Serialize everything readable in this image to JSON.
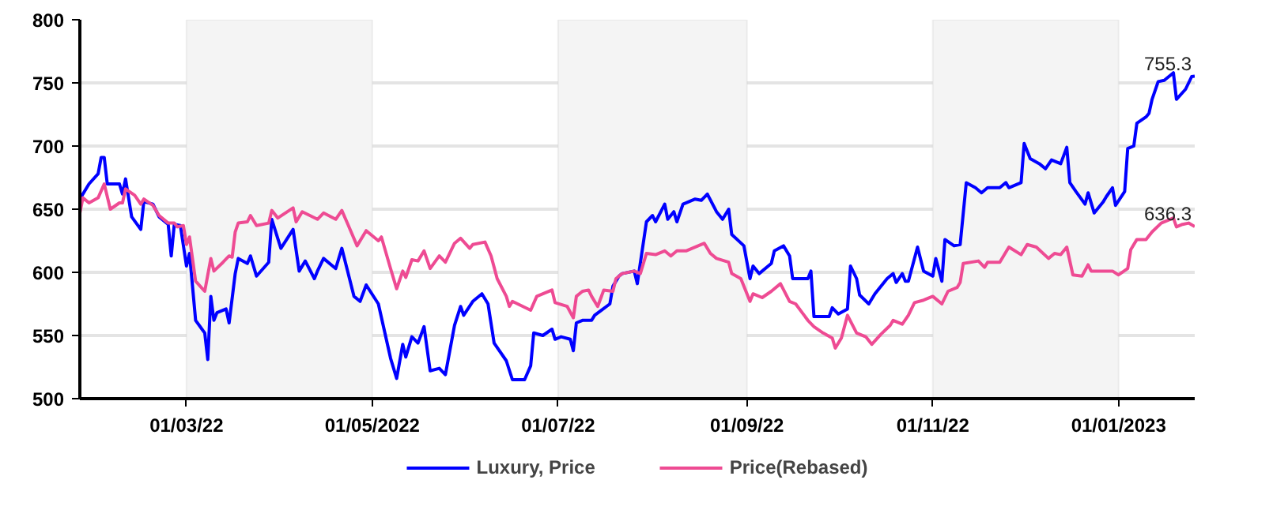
{
  "chart_data": {
    "type": "line",
    "xlim": [
      "2022-01-25",
      "2023-01-26"
    ],
    "xticks": [
      {
        "value": "2022-03-01",
        "label": "01/03/22"
      },
      {
        "value": "2022-05-01",
        "label": "01/05/2022"
      },
      {
        "value": "2022-07-01",
        "label": "01/07/22"
      },
      {
        "value": "2022-09-01",
        "label": "01/09/22"
      },
      {
        "value": "2022-11-01",
        "label": "01/11/22"
      },
      {
        "value": "2023-01-01",
        "label": "01/01/2023"
      }
    ],
    "ylim": [
      500,
      800
    ],
    "yticks": [
      500,
      550,
      600,
      650,
      700,
      750,
      800
    ],
    "grid": "y",
    "legend": "bottom",
    "line_style": "solid",
    "bands": [
      {
        "axis": "x",
        "from": "2022-03-01",
        "to": "2022-05-01",
        "color": "#f4f4f4"
      },
      {
        "axis": "x",
        "from": "2022-07-01",
        "to": "2022-09-01",
        "color": "#f4f4f4"
      },
      {
        "axis": "x",
        "from": "2022-11-01",
        "to": "2023-01-01",
        "color": "#f4f4f4"
      }
    ],
    "annotations": [
      {
        "text": "755.3",
        "x": "2023-01-26",
        "y": 755.3
      },
      {
        "text": "636.3",
        "x": "2023-01-26",
        "y": 636.3
      }
    ],
    "series": [
      {
        "name": "Luxury, Price",
        "color": "#0000ff",
        "x": [
          "2022-01-25",
          "2022-01-28",
          "2022-01-31",
          "2022-02-01",
          "2022-02-02",
          "2022-02-03",
          "2022-02-07",
          "2022-02-08",
          "2022-02-09",
          "2022-02-11",
          "2022-02-14",
          "2022-02-15",
          "2022-02-18",
          "2022-02-20",
          "2022-02-23",
          "2022-02-24",
          "2022-02-25",
          "2022-02-27",
          "2022-03-01",
          "2022-03-02",
          "2022-03-04",
          "2022-03-07",
          "2022-03-08",
          "2022-03-09",
          "2022-03-10",
          "2022-03-11",
          "2022-03-14",
          "2022-03-15",
          "2022-03-17",
          "2022-03-18",
          "2022-03-21",
          "2022-03-22",
          "2022-03-24",
          "2022-03-28",
          "2022-03-29",
          "2022-04-01",
          "2022-04-05",
          "2022-04-07",
          "2022-04-09",
          "2022-04-12",
          "2022-04-13",
          "2022-04-15",
          "2022-04-19",
          "2022-04-21",
          "2022-04-25",
          "2022-04-27",
          "2022-04-29",
          "2022-05-03",
          "2022-05-07",
          "2022-05-09",
          "2022-05-11",
          "2022-05-12",
          "2022-05-14",
          "2022-05-16",
          "2022-05-18",
          "2022-05-20",
          "2022-05-23",
          "2022-05-25",
          "2022-05-28",
          "2022-05-30",
          "2022-05-31",
          "2022-06-03",
          "2022-06-06",
          "2022-06-08",
          "2022-06-10",
          "2022-06-14",
          "2022-06-16",
          "2022-06-20",
          "2022-06-22",
          "2022-06-23",
          "2022-06-26",
          "2022-06-29",
          "2022-06-30",
          "2022-07-02",
          "2022-07-05",
          "2022-07-06",
          "2022-07-07",
          "2022-07-09",
          "2022-07-12",
          "2022-07-13",
          "2022-07-18",
          "2022-07-19",
          "2022-07-21",
          "2022-07-22",
          "2022-07-26",
          "2022-07-27",
          "2022-07-30",
          "2022-08-01",
          "2022-08-02",
          "2022-08-05",
          "2022-08-06",
          "2022-08-08",
          "2022-08-09",
          "2022-08-11",
          "2022-08-15",
          "2022-08-17",
          "2022-08-19",
          "2022-08-22",
          "2022-08-24",
          "2022-08-26",
          "2022-08-27",
          "2022-08-31",
          "2022-09-02",
          "2022-09-03",
          "2022-09-05",
          "2022-09-09",
          "2022-09-10",
          "2022-09-13",
          "2022-09-15",
          "2022-09-16",
          "2022-09-21",
          "2022-09-22",
          "2022-09-23",
          "2022-09-28",
          "2022-09-29",
          "2022-10-01",
          "2022-10-04",
          "2022-10-05",
          "2022-10-07",
          "2022-10-08",
          "2022-10-11",
          "2022-10-13",
          "2022-10-17",
          "2022-10-19",
          "2022-10-20",
          "2022-10-22",
          "2022-10-23",
          "2022-10-24",
          "2022-10-27",
          "2022-10-29",
          "2022-11-01",
          "2022-11-02",
          "2022-11-04",
          "2022-11-05",
          "2022-11-08",
          "2022-11-10",
          "2022-11-12",
          "2022-11-15",
          "2022-11-17",
          "2022-11-19",
          "2022-11-23",
          "2022-11-25",
          "2022-11-26",
          "2022-11-30",
          "2022-12-01",
          "2022-12-03",
          "2022-12-06",
          "2022-12-08",
          "2022-12-10",
          "2022-12-13",
          "2022-12-15",
          "2022-12-16",
          "2022-12-18",
          "2022-12-21",
          "2022-12-22",
          "2022-12-24",
          "2022-12-27",
          "2022-12-28",
          "2022-12-30",
          "2022-12-31",
          "2023-01-03",
          "2023-01-04",
          "2023-01-06",
          "2023-01-07",
          "2023-01-10",
          "2023-01-11",
          "2023-01-12",
          "2023-01-14",
          "2023-01-16",
          "2023-01-19",
          "2023-01-20",
          "2023-01-23",
          "2023-01-25",
          "2023-01-26"
        ],
        "values": [
          658,
          670,
          678,
          691,
          691,
          670,
          670,
          662,
          674,
          644,
          634,
          656,
          654,
          644,
          638,
          613,
          638,
          637,
          605,
          615,
          562,
          552,
          531,
          581,
          562,
          568,
          571,
          560,
          599,
          611,
          607,
          613,
          597,
          608,
          642,
          619,
          634,
          601,
          609,
          595,
          601,
          611,
          603,
          619,
          581,
          577,
          590,
          575,
          532,
          516,
          543,
          533,
          549,
          544,
          557,
          522,
          524,
          519,
          558,
          573,
          566,
          577,
          583,
          575,
          544,
          530,
          515,
          515,
          526,
          552,
          550,
          555,
          547,
          549,
          547,
          538,
          560,
          562,
          562,
          566,
          575,
          589,
          597,
          599,
          601,
          591,
          640,
          645,
          640,
          654,
          642,
          648,
          640,
          654,
          658,
          657,
          662,
          648,
          642,
          650,
          630,
          621,
          595,
          605,
          599,
          607,
          617,
          621,
          613,
          595,
          595,
          601,
          565,
          565,
          572,
          567,
          571,
          605,
          595,
          582,
          575,
          583,
          595,
          599,
          592,
          599,
          593,
          593,
          620,
          601,
          597,
          611,
          593,
          626,
          621,
          622,
          671,
          667,
          663,
          667,
          667,
          671,
          667,
          671,
          702,
          690,
          686,
          682,
          689,
          686,
          699,
          671,
          664,
          654,
          663,
          647,
          656,
          660,
          667,
          653,
          664,
          698,
          700,
          718,
          723,
          726,
          737,
          751,
          752,
          758,
          737,
          745,
          755,
          755.3
        ]
      },
      {
        "name": "Price(Rebased)",
        "color": "#ee4b93",
        "x": [
          "2022-01-25",
          "2022-01-26",
          "2022-01-28",
          "2022-01-31",
          "2022-02-02",
          "2022-02-04",
          "2022-02-07",
          "2022-02-08",
          "2022-02-09",
          "2022-02-12",
          "2022-02-14",
          "2022-02-15",
          "2022-02-18",
          "2022-02-20",
          "2022-02-23",
          "2022-02-25",
          "2022-02-26",
          "2022-02-28",
          "2022-03-01",
          "2022-03-02",
          "2022-03-04",
          "2022-03-07",
          "2022-03-09",
          "2022-03-10",
          "2022-03-13",
          "2022-03-15",
          "2022-03-16",
          "2022-03-17",
          "2022-03-18",
          "2022-03-21",
          "2022-03-22",
          "2022-03-24",
          "2022-03-28",
          "2022-03-29",
          "2022-03-31",
          "2022-04-05",
          "2022-04-06",
          "2022-04-08",
          "2022-04-13",
          "2022-04-15",
          "2022-04-19",
          "2022-04-21",
          "2022-04-23",
          "2022-04-26",
          "2022-04-29",
          "2022-05-03",
          "2022-05-04",
          "2022-05-07",
          "2022-05-09",
          "2022-05-11",
          "2022-05-12",
          "2022-05-14",
          "2022-05-16",
          "2022-05-18",
          "2022-05-20",
          "2022-05-23",
          "2022-05-25",
          "2022-05-28",
          "2022-05-30",
          "2022-06-02",
          "2022-06-03",
          "2022-06-07",
          "2022-06-09",
          "2022-06-11",
          "2022-06-14",
          "2022-06-15",
          "2022-06-16",
          "2022-06-22",
          "2022-06-24",
          "2022-06-29",
          "2022-06-30",
          "2022-07-04",
          "2022-07-06",
          "2022-07-07",
          "2022-07-09",
          "2022-07-11",
          "2022-07-12",
          "2022-07-14",
          "2022-07-16",
          "2022-07-19",
          "2022-07-20",
          "2022-07-22",
          "2022-07-26",
          "2022-07-28",
          "2022-07-30",
          "2022-08-02",
          "2022-08-05",
          "2022-08-07",
          "2022-08-09",
          "2022-08-12",
          "2022-08-16",
          "2022-08-18",
          "2022-08-20",
          "2022-08-22",
          "2022-08-26",
          "2022-08-27",
          "2022-08-30",
          "2022-09-02",
          "2022-09-03",
          "2022-09-06",
          "2022-09-09",
          "2022-09-12",
          "2022-09-15",
          "2022-09-17",
          "2022-09-21",
          "2022-09-23",
          "2022-09-26",
          "2022-09-29",
          "2022-09-30",
          "2022-10-02",
          "2022-10-04",
          "2022-10-07",
          "2022-10-10",
          "2022-10-12",
          "2022-10-15",
          "2022-10-18",
          "2022-10-19",
          "2022-10-22",
          "2022-10-24",
          "2022-10-26",
          "2022-10-29",
          "2022-11-01",
          "2022-11-04",
          "2022-11-06",
          "2022-11-09",
          "2022-11-10",
          "2022-11-11",
          "2022-11-16",
          "2022-11-18",
          "2022-11-19",
          "2022-11-23",
          "2022-11-26",
          "2022-11-30",
          "2022-12-02",
          "2022-12-05",
          "2022-12-09",
          "2022-12-11",
          "2022-12-13",
          "2022-12-15",
          "2022-12-17",
          "2022-12-20",
          "2022-12-22",
          "2022-12-23",
          "2022-12-30",
          "2023-01-01",
          "2023-01-04",
          "2023-01-05",
          "2023-01-07",
          "2023-01-10",
          "2023-01-12",
          "2023-01-15",
          "2023-01-19",
          "2023-01-20",
          "2023-01-22",
          "2023-01-24",
          "2023-01-26"
        ],
        "values": [
          647,
          659,
          655,
          659,
          670,
          650,
          655,
          655,
          666,
          661,
          654,
          658,
          653,
          645,
          639,
          639,
          636,
          637,
          622,
          628,
          593,
          585,
          611,
          601,
          608,
          613,
          612,
          632,
          639,
          640,
          645,
          637,
          639,
          649,
          643,
          651,
          640,
          648,
          642,
          647,
          642,
          649,
          638,
          621,
          633,
          625,
          628,
          603,
          587,
          601,
          596,
          610,
          609,
          617,
          603,
          613,
          608,
          623,
          627,
          619,
          622,
          624,
          613,
          595,
          581,
          573,
          577,
          570,
          581,
          586,
          576,
          573,
          564,
          581,
          585,
          586,
          581,
          573,
          586,
          585,
          595,
          599,
          601,
          599,
          615,
          614,
          617,
          613,
          617,
          617,
          621,
          623,
          615,
          611,
          608,
          599,
          595,
          577,
          583,
          580,
          585,
          591,
          577,
          575,
          562,
          557,
          552,
          548,
          540,
          548,
          566,
          552,
          549,
          543,
          551,
          558,
          562,
          559,
          566,
          576,
          578,
          581,
          575,
          585,
          588,
          592,
          607,
          609,
          604,
          608,
          608,
          620,
          614,
          622,
          620,
          611,
          615,
          614,
          620,
          598,
          597,
          606,
          601,
          601,
          598,
          603,
          618,
          626,
          626,
          632,
          639,
          643,
          636,
          638,
          639,
          636.3
        ]
      }
    ]
  }
}
